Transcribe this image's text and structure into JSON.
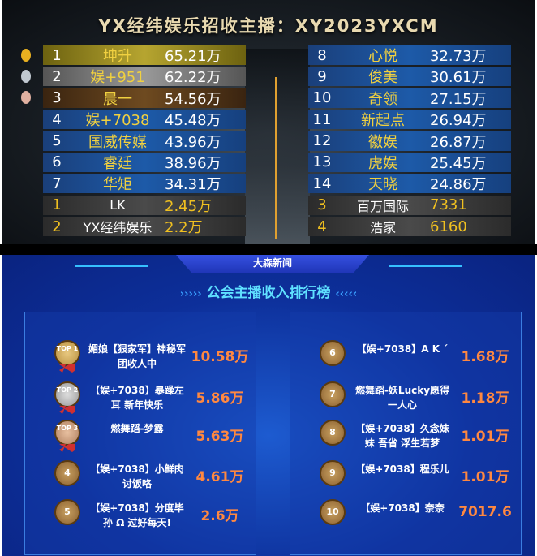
{
  "title": "YX经纬娱乐招收主播：XY2023YXCM",
  "left_table": [
    {
      "rank": "1",
      "name": "坤升",
      "value": "65.21万",
      "style": "gold"
    },
    {
      "rank": "2",
      "name": "娱+951",
      "value": "62.22万",
      "style": "silver"
    },
    {
      "rank": "3",
      "name": "晨一",
      "value": "54.56万",
      "style": "bronze"
    },
    {
      "rank": "4",
      "name": "娱+7038",
      "value": "45.48万",
      "style": "blue"
    },
    {
      "rank": "5",
      "name": "国威传媒",
      "value": "43.96万",
      "style": "blue"
    },
    {
      "rank": "6",
      "name": "睿廷",
      "value": "38.96万",
      "style": "blue"
    },
    {
      "rank": "7",
      "name": "华矩",
      "value": "34.31万",
      "style": "blue"
    },
    {
      "rank": "1",
      "name": "LK",
      "value": "2.45万",
      "style": "gray"
    },
    {
      "rank": "2",
      "name": "YX经纬娱乐",
      "value": "2.2万",
      "style": "gray"
    }
  ],
  "right_table": [
    {
      "rank": "8",
      "name": "心悦",
      "value": "32.73万",
      "style": "blue"
    },
    {
      "rank": "9",
      "name": "俊美",
      "value": "30.61万",
      "style": "blue"
    },
    {
      "rank": "10",
      "name": "奇领",
      "value": "27.15万",
      "style": "blue"
    },
    {
      "rank": "11",
      "name": "新起点",
      "value": "26.94万",
      "style": "blue"
    },
    {
      "rank": "12",
      "name": "徽娱",
      "value": "26.87万",
      "style": "blue"
    },
    {
      "rank": "13",
      "name": "虎娱",
      "value": "25.45万",
      "style": "blue"
    },
    {
      "rank": "14",
      "name": "天晓",
      "value": "24.86万",
      "style": "blue"
    },
    {
      "rank": "3",
      "name": "百万国际",
      "value": "7331",
      "style": "gray"
    },
    {
      "rank": "4",
      "name": "浩家",
      "value": "6160",
      "style": "gray"
    }
  ],
  "medal_colors": [
    "#e8b020",
    "#c0c8d0",
    "#e0b0a0"
  ],
  "news_header": "大森新闻",
  "ranking_title": "公会主播收入排行榜",
  "title_deco_left": "›››››",
  "title_deco_right": "‹‹‹‹‹",
  "left_panel": [
    {
      "badge": "TOP 1",
      "name": "媚娘【狠家军】神秘军团收人中",
      "value": "10.58万"
    },
    {
      "badge": "TOP 2",
      "name": "【娱+7038】暴躁左耳 新年快乐",
      "value": "5.86万"
    },
    {
      "badge": "TOP 3",
      "name": "燃舞蹈-梦露",
      "value": "5.63万"
    },
    {
      "badge": "4",
      "name": "【娱+7038】小鲜肉讨饭咯",
      "value": "4.61万"
    },
    {
      "badge": "5",
      "name": "【娱+7038】分度毕孙 Ω 过好每天!",
      "value": "2.6万"
    }
  ],
  "right_panel": [
    {
      "badge": "6",
      "name": "【娱+7038】A K ˊ",
      "value": "1.68万"
    },
    {
      "badge": "7",
      "name": "燃舞蹈-妖Lucky愿得一人心",
      "value": "1.18万"
    },
    {
      "badge": "8",
      "name": "【娱+7038】久念妹妹 吾省 浮生若梦",
      "value": "1.01万"
    },
    {
      "badge": "9",
      "name": "【娱+7038】程乐儿",
      "value": "1.01万"
    },
    {
      "badge": "10",
      "name": "【娱+7038】奈奈",
      "value": "7017.6"
    }
  ]
}
